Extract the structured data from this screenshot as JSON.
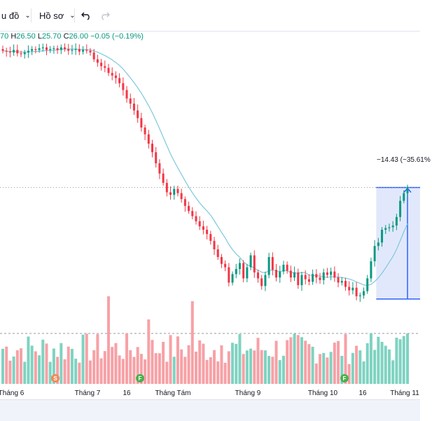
{
  "toolbar": {
    "chart_menu_label": "u đồ",
    "profile_menu_label": "Hồ sơ",
    "undo_icon": "undo-icon",
    "redo_icon": "redo-icon"
  },
  "ohlc": {
    "o_value": "70",
    "h_label": "H",
    "h_value": "26.50",
    "l_label": "L",
    "l_value": "25.70",
    "c_label": "C",
    "c_value": "26.00",
    "change": "−0.05",
    "change_pct": "(−0.19%)"
  },
  "measure": {
    "label": "−14.43 (−35.61%"
  },
  "x_axis": {
    "ticks": [
      "Tháng 6",
      "Tháng 7",
      "16",
      "Tháng Tám",
      "Tháng 9",
      "Tháng 10",
      "16",
      "Tháng 11"
    ]
  },
  "events": [
    {
      "letter": "S",
      "color": "#f08a5d"
    },
    {
      "letter": "F",
      "color": "#4caf50"
    },
    {
      "letter": "F",
      "color": "#4caf50"
    }
  ],
  "colors": {
    "up": "#089981",
    "down": "#f23645",
    "up_vol": "#7ed3c1",
    "down_vol": "#f7a1a6",
    "ma": "#7ec8dc",
    "measure_fill": "#dfe6fb",
    "measure_line": "#2962ff"
  },
  "chart_data": {
    "type": "candlestick",
    "series": [
      {
        "name": "price",
        "closes": [
          30.8,
          30.7,
          30.6,
          30.9,
          30.5,
          30.4,
          30.6,
          30.8,
          31.0,
          30.9,
          31.1,
          31.2,
          30.9,
          31.0,
          31.1,
          30.9,
          31.2,
          31.0,
          30.8,
          30.9,
          31.0,
          30.7,
          30.9,
          30.8,
          30.6,
          29.8,
          29.4,
          29.0,
          28.8,
          28.2,
          27.9,
          27.6,
          27.0,
          26.2,
          25.2,
          24.6,
          23.8,
          22.9,
          21.8,
          21.0,
          19.9,
          18.9,
          17.6,
          16.4,
          15.3,
          14.2,
          13.9,
          14.6,
          14.1,
          13.4,
          12.6,
          12.0,
          11.4,
          10.8,
          10.2,
          9.8,
          9.3,
          8.5,
          7.5,
          6.6,
          5.8,
          5.4,
          3.6,
          4.6,
          5.2,
          5.9,
          4.1,
          5.4,
          6.8,
          4.8,
          4.1,
          3.2,
          4.5,
          6.6,
          5.1,
          4.2,
          4.9,
          5.7,
          5.0,
          4.2,
          4.8,
          3.3,
          4.5,
          4.0,
          3.7,
          4.6,
          4.2,
          3.9,
          4.8,
          4.5,
          4.9,
          4.2,
          3.6,
          3.8,
          3.1,
          2.7,
          3.0,
          2.0,
          2.1,
          2.6,
          4.1,
          6.1,
          7.9,
          8.3,
          9.8,
          10.0,
          10.1,
          10.3,
          11.3,
          13.2,
          14.1,
          14.6
        ]
      }
    ]
  }
}
